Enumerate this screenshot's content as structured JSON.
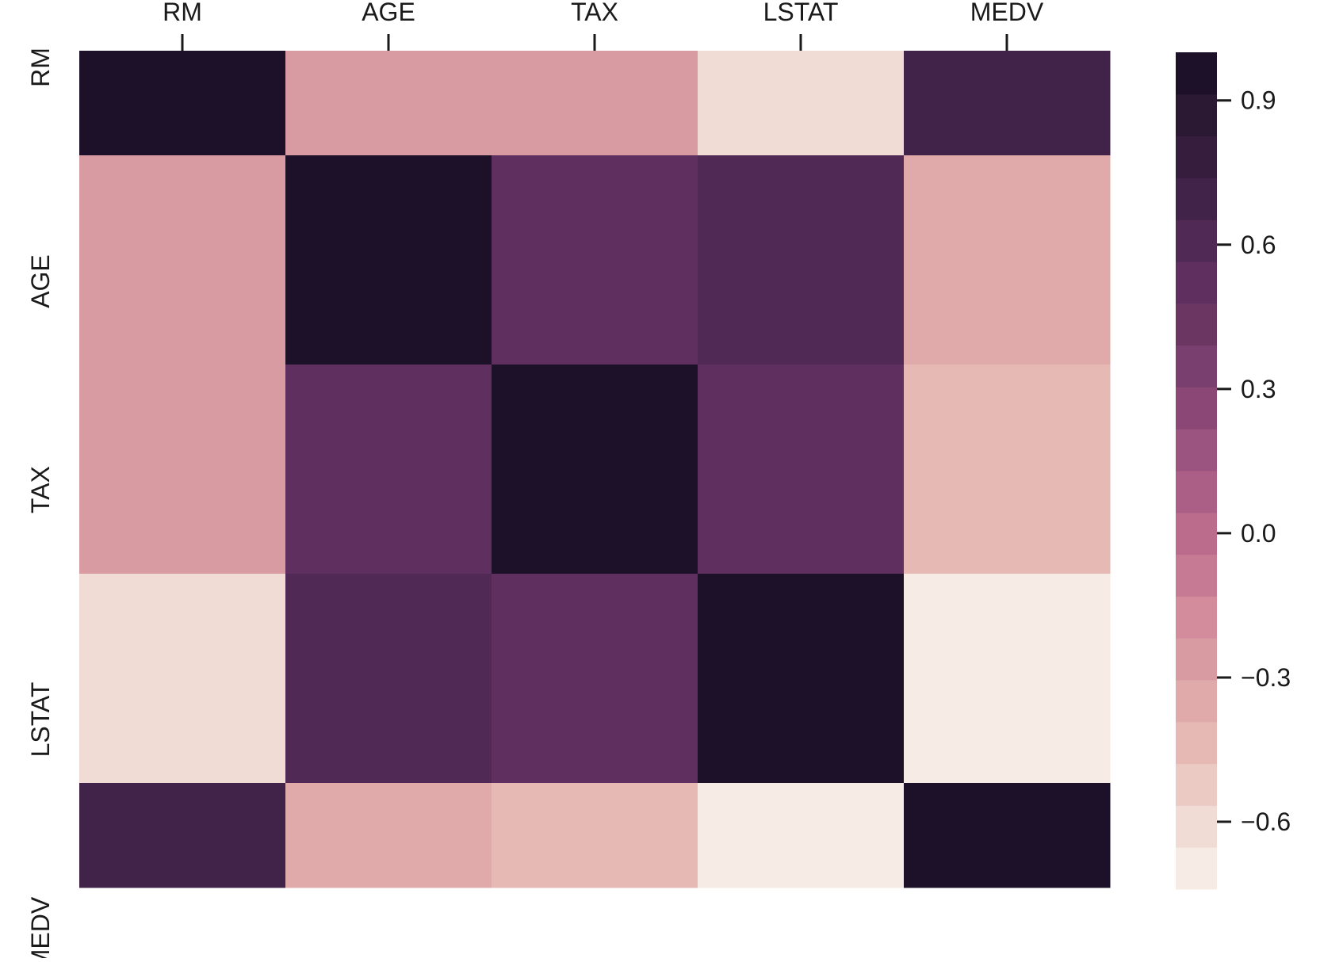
{
  "chart_data": {
    "type": "heatmap",
    "title": "",
    "xlabel": "",
    "ylabel": "",
    "x_labels": [
      "RM",
      "AGE",
      "TAX",
      "LSTAT",
      "MEDV"
    ],
    "y_labels": [
      "RM",
      "AGE",
      "TAX",
      "LSTAT",
      "MEDV"
    ],
    "x_tick_position": "top",
    "matrix": [
      [
        1.0,
        -0.24,
        -0.29,
        -0.61,
        0.7
      ],
      [
        -0.24,
        1.0,
        0.51,
        0.6,
        -0.38
      ],
      [
        -0.29,
        0.51,
        1.0,
        0.54,
        -0.47
      ],
      [
        -0.61,
        0.6,
        0.54,
        1.0,
        -0.74
      ],
      [
        0.7,
        -0.38,
        -0.47,
        -0.74,
        1.0
      ]
    ],
    "colorbar": {
      "vmin": -0.74,
      "vmax": 1.0,
      "levels": 20,
      "ticks": [
        0.9,
        0.6,
        0.3,
        0.0,
        -0.3,
        -0.6
      ],
      "tick_labels": [
        "0.9",
        "0.6",
        "0.3",
        "0.0",
        "−0.3",
        "−0.6"
      ],
      "colors": [
        "#f7ebe6",
        "#f0dcd4",
        "#ebcac3",
        "#e6b9b5",
        "#e0aaaa",
        "#d99ba2",
        "#d38c9c",
        "#c77a93",
        "#bb6b8b",
        "#ac5f86",
        "#9b537f",
        "#8b4877",
        "#793f6f",
        "#6c3662",
        "#5e2f5f",
        "#502a55",
        "#412349",
        "#361d3d",
        "#2b1833",
        "#1d1129"
      ]
    },
    "grid": false,
    "legend": "colorbar-right"
  }
}
